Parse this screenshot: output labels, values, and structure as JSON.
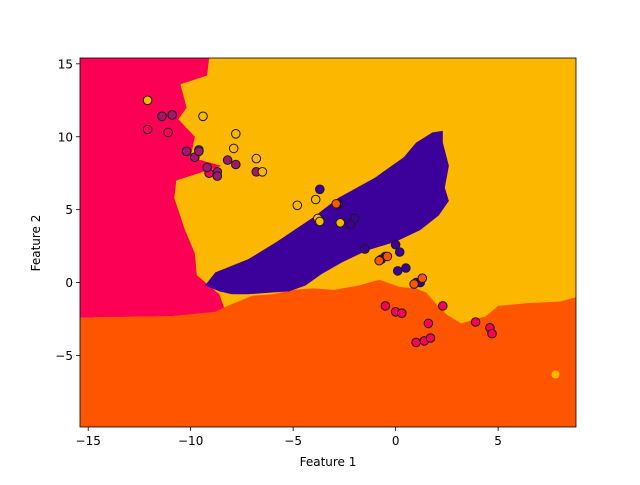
{
  "chart_data": {
    "type": "scatter",
    "title": "",
    "xlabel": "Feature 1",
    "ylabel": "Feature 2",
    "xlim": [
      -15.4,
      8.8
    ],
    "ylim": [
      -9.9,
      15.4
    ],
    "grid": false,
    "legend": "none",
    "x_ticks": [
      -15,
      -10,
      -5,
      0,
      5
    ],
    "y_ticks": [
      -5,
      0,
      5,
      10,
      15
    ],
    "x_tick_labels": [
      "−15",
      "−10",
      "−5",
      "0",
      "5"
    ],
    "y_tick_labels": [
      "−5",
      "0",
      "5",
      "10",
      "15"
    ],
    "background_regions": {
      "description_colors": {
        "pink": "#fb0054",
        "amber": "#fcb800",
        "violet": "#3c009b",
        "orange": "#ff5500"
      },
      "pink_region": [
        [
          -15.4,
          15.4
        ],
        [
          -9.1,
          15.4
        ],
        [
          -9.2,
          14.2
        ],
        [
          -10.5,
          13.6
        ],
        [
          -10.2,
          12.0
        ],
        [
          -10.6,
          11.2
        ],
        [
          -9.8,
          10.0
        ],
        [
          -10.0,
          8.6
        ],
        [
          -8.5,
          8.0
        ],
        [
          -10.7,
          7.0
        ],
        [
          -10.8,
          5.8
        ],
        [
          -10.3,
          3.7
        ],
        [
          -9.8,
          2.0
        ],
        [
          -9.7,
          0.5
        ],
        [
          -8.6,
          -0.8
        ],
        [
          -8.3,
          -2.0
        ],
        [
          -11.0,
          -2.3
        ],
        [
          -15.4,
          -2.4
        ]
      ],
      "violet_region": [
        [
          -9.3,
          -0.2
        ],
        [
          -8.8,
          0.7
        ],
        [
          -7.2,
          1.6
        ],
        [
          -5.8,
          2.8
        ],
        [
          -4.0,
          4.5
        ],
        [
          -2.8,
          5.8
        ],
        [
          -1.0,
          7.2
        ],
        [
          0.4,
          8.6
        ],
        [
          1.0,
          9.6
        ],
        [
          1.8,
          10.3
        ],
        [
          2.3,
          10.4
        ],
        [
          2.3,
          9.6
        ],
        [
          2.6,
          8.0
        ],
        [
          2.4,
          6.5
        ],
        [
          2.6,
          5.6
        ],
        [
          2.1,
          4.6
        ],
        [
          1.2,
          3.6
        ],
        [
          0.0,
          2.8
        ],
        [
          -1.4,
          2.2
        ],
        [
          -2.6,
          1.4
        ],
        [
          -3.6,
          0.6
        ],
        [
          -4.4,
          -0.2
        ],
        [
          -5.2,
          -0.6
        ],
        [
          -6.2,
          -0.7
        ],
        [
          -7.2,
          -0.8
        ],
        [
          -8.0,
          -0.8
        ],
        [
          -8.6,
          -0.6
        ]
      ],
      "orange_region": [
        [
          -15.4,
          -9.9
        ],
        [
          8.8,
          -9.9
        ],
        [
          8.8,
          -1.0
        ],
        [
          8.0,
          -1.3
        ],
        [
          6.5,
          -1.4
        ],
        [
          5.0,
          -1.6
        ],
        [
          4.4,
          -2.3
        ],
        [
          3.2,
          -2.8
        ],
        [
          2.5,
          -2.2
        ],
        [
          2.0,
          -1.5
        ],
        [
          1.5,
          -0.7
        ],
        [
          1.0,
          -0.4
        ],
        [
          0.2,
          -0.3
        ],
        [
          -0.8,
          0.2
        ],
        [
          -1.8,
          -0.2
        ],
        [
          -3.0,
          -0.5
        ],
        [
          -4.0,
          -0.4
        ],
        [
          -5.0,
          -0.5
        ],
        [
          -6.0,
          -0.8
        ],
        [
          -7.0,
          -0.9
        ],
        [
          -8.2,
          -1.6
        ],
        [
          -8.8,
          -2.0
        ],
        [
          -11.0,
          -2.3
        ],
        [
          -15.4,
          -2.4
        ]
      ],
      "orange_islet": [
        7.8,
        -6.3
      ]
    },
    "series": [
      {
        "color": "#fb0054",
        "points": [
          [
            -12.1,
            10.5
          ],
          [
            -11.1,
            10.3
          ],
          [
            -9.1,
            7.5
          ],
          [
            -0.5,
            -1.6
          ],
          [
            0.0,
            -2.0
          ],
          [
            0.3,
            -2.1
          ],
          [
            1.0,
            -4.1
          ],
          [
            1.4,
            -4.0
          ],
          [
            1.7,
            -3.8
          ],
          [
            2.3,
            -1.6
          ],
          [
            3.9,
            -2.7
          ],
          [
            4.6,
            -3.1
          ],
          [
            4.7,
            -3.5
          ],
          [
            1.6,
            -2.8
          ]
        ]
      },
      {
        "color": "#a0186e",
        "points": [
          [
            -11.4,
            11.4
          ],
          [
            -10.9,
            11.5
          ],
          [
            -10.2,
            9.0
          ],
          [
            -9.6,
            9.1
          ],
          [
            -9.8,
            8.6
          ],
          [
            -9.2,
            7.9
          ],
          [
            -8.7,
            7.6
          ],
          [
            -8.7,
            7.3
          ],
          [
            -8.2,
            8.4
          ],
          [
            -7.8,
            8.1
          ],
          [
            -6.8,
            7.6
          ],
          [
            -9.6,
            9.0
          ]
        ]
      },
      {
        "color": "#fcb800",
        "points": [
          [
            -12.1,
            12.5
          ],
          [
            -9.4,
            11.4
          ],
          [
            -7.8,
            10.2
          ],
          [
            -7.9,
            9.2
          ],
          [
            -6.8,
            8.5
          ],
          [
            -6.5,
            7.6
          ],
          [
            -4.8,
            5.3
          ],
          [
            -3.9,
            5.7
          ],
          [
            -3.8,
            4.4
          ],
          [
            -3.7,
            4.2
          ],
          [
            -2.7,
            4.1
          ]
        ]
      },
      {
        "color": "#3c009b",
        "points": [
          [
            -3.7,
            6.4
          ],
          [
            -2.0,
            4.4
          ],
          [
            -2.2,
            4.0
          ],
          [
            -1.5,
            2.3
          ],
          [
            -0.5,
            1.8
          ],
          [
            0.0,
            2.6
          ],
          [
            0.2,
            2.1
          ],
          [
            0.5,
            1.0
          ],
          [
            0.1,
            0.8
          ],
          [
            1.0,
            0.0
          ],
          [
            1.2,
            0.0
          ],
          [
            -2.8,
            5.4
          ],
          [
            -0.7,
            1.6
          ]
        ]
      },
      {
        "color": "#ff5500",
        "points": [
          [
            -2.9,
            5.4
          ],
          [
            -0.8,
            1.5
          ],
          [
            -0.4,
            1.8
          ],
          [
            0.9,
            -0.1
          ],
          [
            1.3,
            0.3
          ]
        ]
      }
    ]
  }
}
